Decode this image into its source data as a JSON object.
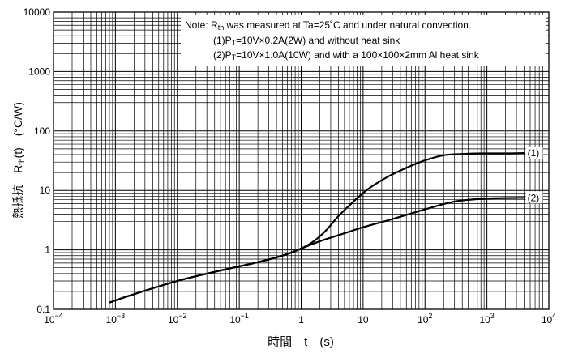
{
  "chart_data": {
    "type": "line",
    "xlabel": "時間　t　(s)",
    "ylabel": "熱抵抗　Rth(t)　(°C/W)",
    "xscale": "log",
    "yscale": "log",
    "xlim": [
      0.0001,
      10000
    ],
    "ylim": [
      0.1,
      10000
    ],
    "grid": true,
    "x_ticks": [
      {
        "base": "10",
        "exp": "−4",
        "value": 0.0001
      },
      {
        "base": "10",
        "exp": "−3",
        "value": 0.001
      },
      {
        "base": "10",
        "exp": "−2",
        "value": 0.01
      },
      {
        "base": "10",
        "exp": "−1",
        "value": 0.1
      },
      {
        "base": "1",
        "exp": "",
        "value": 1
      },
      {
        "base": "10",
        "exp": "",
        "value": 10
      },
      {
        "base": "10",
        "exp": "2",
        "value": 100
      },
      {
        "base": "10",
        "exp": "3",
        "value": 1000
      },
      {
        "base": "10",
        "exp": "4",
        "value": 10000
      }
    ],
    "y_ticks": [
      {
        "label": "0.1",
        "value": 0.1
      },
      {
        "label": "1",
        "value": 1
      },
      {
        "label": "10",
        "value": 10
      },
      {
        "label": "100",
        "value": 100
      },
      {
        "label": "1000",
        "value": 1000
      },
      {
        "label": "10000",
        "value": 10000
      }
    ],
    "note": [
      "Note: Rth was measured at Ta=25˚C and under natural convection.",
      "(1)PT=10V×0.2A(2W) and without heat sink",
      "(2)PT=10V×1.0A(10W) and with a 100×100×2mm Al heat sink"
    ],
    "series": [
      {
        "name": "(1)",
        "x": [
          0.0008,
          0.002,
          0.01,
          0.05,
          0.2,
          0.5,
          1,
          1.6,
          2.5,
          4,
          7,
          12,
          25,
          50,
          100,
          200,
          400,
          800,
          2000,
          4000
        ],
        "y": [
          0.13,
          0.18,
          0.3,
          0.45,
          0.62,
          0.8,
          1.05,
          1.4,
          2.1,
          3.7,
          6.5,
          10.5,
          17,
          24,
          32,
          39,
          41,
          42,
          42,
          42.5
        ]
      },
      {
        "name": "(2)",
        "x": [
          0.0008,
          0.002,
          0.01,
          0.05,
          0.2,
          0.5,
          1,
          2,
          5,
          10,
          30,
          100,
          300,
          1000,
          4000
        ],
        "y": [
          0.13,
          0.18,
          0.3,
          0.45,
          0.62,
          0.8,
          1.05,
          1.4,
          1.9,
          2.4,
          3.3,
          4.8,
          6.5,
          7.3,
          7.5
        ]
      }
    ]
  }
}
